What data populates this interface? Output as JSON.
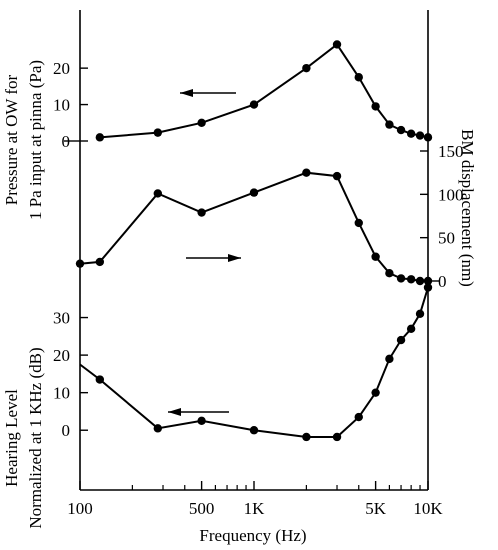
{
  "chart_data": [
    {
      "type": "line",
      "id": "pressure",
      "ylabel_lines": [
        "Pressure at OW for",
        "1 Pa input at pinna (Pa)"
      ],
      "ylim": [
        0,
        28
      ],
      "y_ticks": [
        0,
        10,
        20
      ],
      "arrow_direction": "left",
      "series": [
        {
          "x": [
            130,
            280,
            500,
            1000,
            2000,
            3000,
            4000,
            5000,
            6000,
            7000,
            8000,
            9000,
            10000
          ],
          "y": [
            1,
            2.3,
            5,
            10,
            20,
            26.5,
            17.5,
            9.5,
            4.5,
            3,
            2,
            1.5,
            1
          ]
        }
      ]
    },
    {
      "type": "line",
      "id": "bm",
      "ylabel_lines": [
        "BM displacement (nm)"
      ],
      "ylim": [
        0,
        165
      ],
      "y_ticks": [
        0,
        50,
        100,
        150
      ],
      "arrow_direction": "right",
      "series": [
        {
          "x": [
            100,
            130,
            280,
            500,
            1000,
            2000,
            3000,
            4000,
            5000,
            6000,
            7000,
            8000,
            9000,
            10000
          ],
          "y": [
            20,
            22,
            101,
            79,
            102,
            125,
            121,
            67,
            28,
            9,
            3,
            2,
            0,
            0
          ]
        }
      ]
    },
    {
      "type": "line",
      "id": "hearing",
      "ylabel_lines": [
        "Hearing Level",
        "Normalized at 1 KHz (dB)"
      ],
      "ylim": [
        -5,
        40
      ],
      "y_ticks": [
        0,
        10,
        20,
        30
      ],
      "arrow_direction": "left",
      "series": [
        {
          "x": [
            100,
            130,
            280,
            500,
            1000,
            2000,
            3000,
            4000,
            5000,
            6000,
            7000,
            8000,
            9000,
            10000
          ],
          "y": [
            17.5,
            13.5,
            0.5,
            2.5,
            0,
            -1.8,
            -1.8,
            3.5,
            10,
            19,
            24,
            27,
            31,
            38
          ]
        }
      ]
    }
  ],
  "x_axis": {
    "label": "Frequency (Hz)",
    "scale": "log",
    "xlim": [
      100,
      10000
    ],
    "tick_labels": [
      {
        "value": 100,
        "text": "100"
      },
      {
        "value": 500,
        "text": "500"
      },
      {
        "value": 1000,
        "text": "1K"
      },
      {
        "value": 5000,
        "text": "5K"
      },
      {
        "value": 10000,
        "text": "10K"
      }
    ],
    "minor_ticks": [
      200,
      300,
      400,
      600,
      700,
      800,
      900,
      2000,
      3000,
      4000,
      6000,
      7000,
      8000,
      9000
    ]
  }
}
